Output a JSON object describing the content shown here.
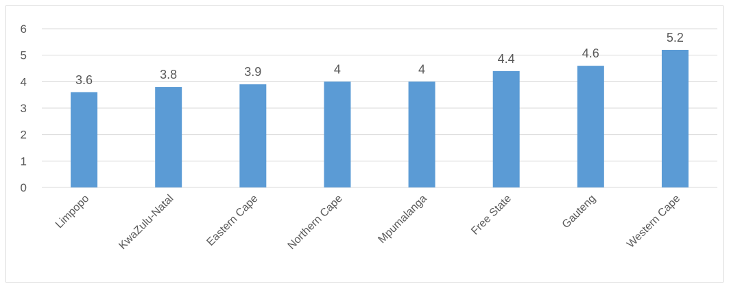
{
  "chart_data": {
    "type": "bar",
    "categories": [
      "Limpopo",
      "KwaZulu-Natal",
      "Eastern Cape",
      "Northern Cape",
      "Mpumalanga",
      "Free State",
      "Gauteng",
      "Western Cape"
    ],
    "values": [
      3.6,
      3.8,
      3.9,
      4,
      4,
      4.4,
      4.6,
      5.2
    ],
    "data_labels": [
      "3.6",
      "3.8",
      "3.9",
      "4",
      "4",
      "4.4",
      "4.6",
      "5.2"
    ],
    "y_ticks": [
      "0",
      "1",
      "2",
      "3",
      "4",
      "5",
      "6"
    ],
    "ylim": [
      0,
      6
    ],
    "grid": true,
    "legend": "none",
    "bar_color": "#5b9bd5",
    "title": "",
    "xlabel": "",
    "ylabel": ""
  }
}
